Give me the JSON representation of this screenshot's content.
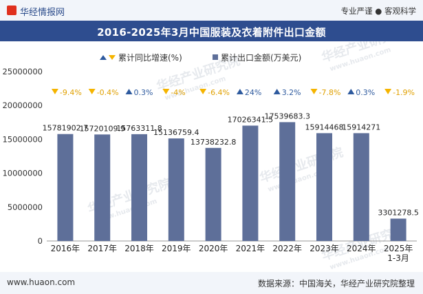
{
  "header": {
    "brand": "华经情报网",
    "slogan": "专业严谨 ● 客观科学"
  },
  "chart_data": {
    "type": "bar",
    "title": "2016-2025年3月中国服装及衣着附件出口金额",
    "categories": [
      "2016年",
      "2017年",
      "2018年",
      "2019年",
      "2020年",
      "2021年",
      "2022年",
      "2023年",
      "2024年",
      "2025年\n1-3月"
    ],
    "series": [
      {
        "name": "累计出口金额(万美元)",
        "values": [
          15781902.7,
          15720109.9,
          15763311.8,
          15136759.4,
          13738232.8,
          17026341.5,
          17539683.3,
          15914468,
          15914271,
          3301278.5
        ],
        "labels": [
          "15781902.7",
          "15720109.9",
          "15763311.8",
          "15136759.4",
          "13738232.8",
          "17026341.5",
          "17539683.3",
          "15914468",
          "15914271",
          "3301278.5"
        ],
        "color": "#5e6f99"
      },
      {
        "name": "累计同比增速(%)",
        "values": [
          -9.4,
          -0.4,
          0.3,
          -4,
          -6.4,
          24,
          3.2,
          -7.8,
          0.3,
          -1.9
        ],
        "labels": [
          "-9.4%",
          "-0.4%",
          "0.3%",
          "-4%",
          "-6.4%",
          "24%",
          "3.2%",
          "-7.8%",
          "0.3%",
          "-1.9%"
        ],
        "up_color": "#2e5a9e",
        "down_color": "#f5b400"
      }
    ],
    "ylim": [
      0,
      25000000
    ],
    "yticks": [
      "0",
      "5000000",
      "10000000",
      "15000000",
      "20000000",
      "25000000"
    ],
    "legend": "top-center",
    "grid": false
  },
  "watermark": {
    "text_cn": "华经产业研究院",
    "text_en": "www.huaon.com"
  },
  "footer": {
    "url": "www.huaon.com",
    "source": "数据来源：中国海关，华经产业研究院整理"
  }
}
